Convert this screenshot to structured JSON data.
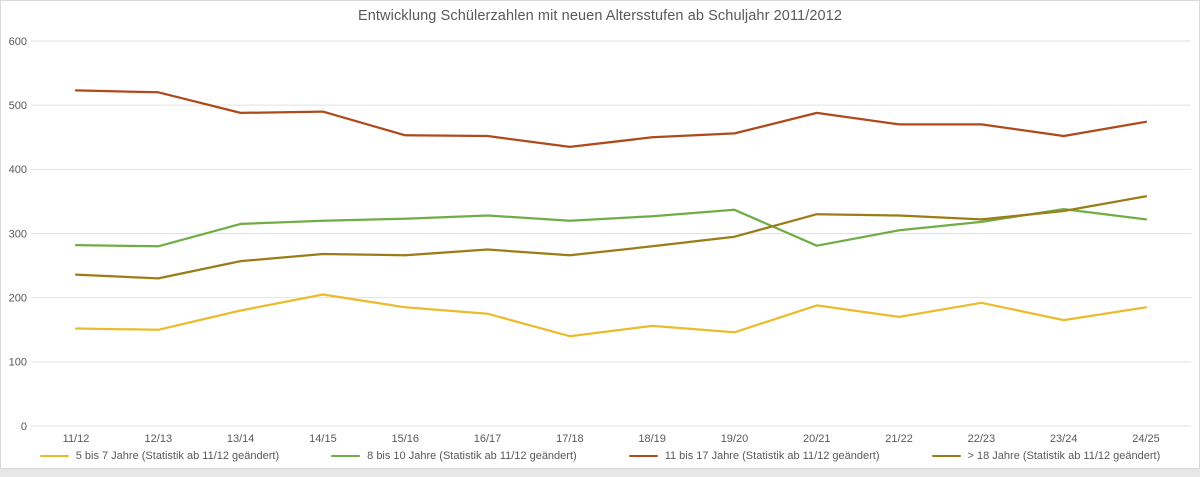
{
  "chart_data": {
    "type": "line",
    "title": "Entwicklung Schülerzahlen mit neuen Altersstufen ab Schuljahr 2011/2012",
    "categories": [
      "11/12",
      "12/13",
      "13/14",
      "14/15",
      "15/16",
      "16/17",
      "17/18",
      "18/19",
      "19/20",
      "20/21",
      "21/22",
      "22/23",
      "23/24",
      "24/25"
    ],
    "series": [
      {
        "name": "5 bis 7 Jahre (Statistik ab 11/12 geändert)",
        "color": "#EABC2D",
        "values": [
          152,
          150,
          180,
          205,
          185,
          175,
          140,
          156,
          146,
          188,
          170,
          192,
          165,
          185
        ]
      },
      {
        "name": "8 bis 10 Jahre (Statistik ab 11/12 geändert)",
        "color": "#70AD47",
        "values": [
          282,
          280,
          315,
          320,
          323,
          328,
          320,
          327,
          337,
          281,
          305,
          318,
          338,
          322
        ]
      },
      {
        "name": "11 bis 17 Jahre (Statistik ab 11/12 geändert)",
        "color": "#AE4A1C",
        "values": [
          523,
          520,
          488,
          490,
          453,
          452,
          435,
          450,
          456,
          488,
          470,
          470,
          452,
          474
        ]
      },
      {
        "name": "> 18 Jahre (Statistik ab 11/12 geändert)",
        "color": "#9A7D16",
        "values": [
          236,
          230,
          257,
          268,
          266,
          275,
          266,
          280,
          295,
          330,
          328,
          322,
          335,
          358
        ]
      }
    ],
    "xlabel": "",
    "ylabel": "",
    "ylim": [
      0,
      600
    ],
    "yticks": [
      0,
      100,
      200,
      300,
      400,
      500,
      600
    ],
    "grid": true,
    "legend_position": "bottom"
  },
  "style": {
    "gridline_color": "#e2e2e2",
    "tick_label_color": "#595959",
    "title_color": "#595959",
    "frame_border_color": "#d9d9d9",
    "background": "#ffffff"
  }
}
